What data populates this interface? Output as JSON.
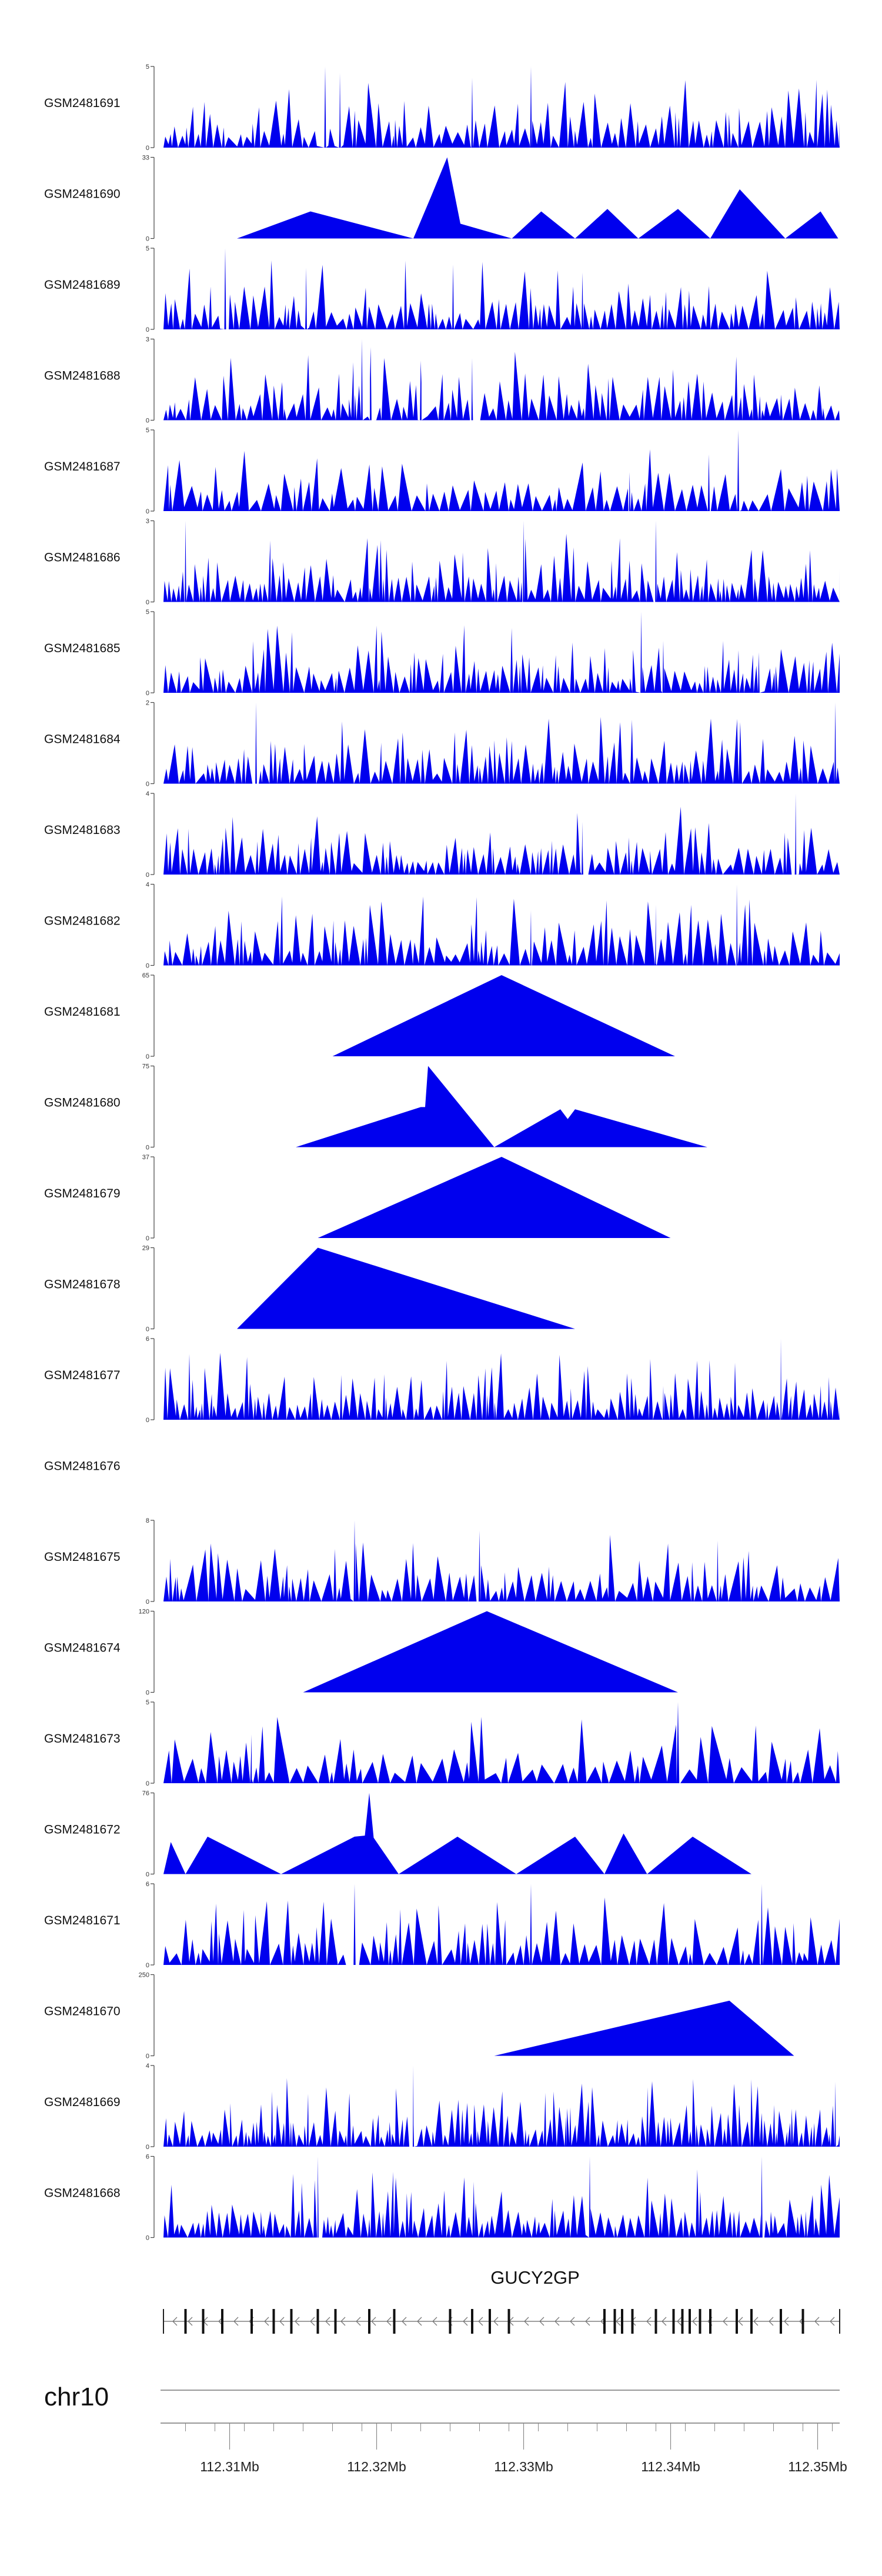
{
  "chart_data": {
    "type": "area",
    "title": "",
    "chromosome": "chr10",
    "gene": "GUCY2GP",
    "xlabel": "",
    "xlim": [
      112.3055,
      112.3515
    ],
    "x_ticks": [
      112.31,
      112.32,
      112.33,
      112.34,
      112.35
    ],
    "x_tick_labels": [
      "112.31Mb",
      "112.32Mb",
      "112.33Mb",
      "112.34Mb",
      "112.35Mb"
    ],
    "colors": {
      "fill": "#0000ee",
      "axis": "#444444",
      "label": "#111111"
    },
    "tracks": [
      {
        "name": "GSM2481691",
        "ymax": 5,
        "ymax_label": "5",
        "min_label": "0",
        "style": "spiky",
        "seed": 11,
        "density": 90,
        "peaks": [
          [
            112.3165,
            5
          ],
          [
            112.3175,
            4.6
          ],
          [
            112.3265,
            4.3
          ],
          [
            112.3305,
            5
          ]
        ]
      },
      {
        "name": "GSM2481690",
        "ymax": 33,
        "ymax_label": "33",
        "min_label": "0",
        "style": "points",
        "points": [
          [
            112.3105,
            0
          ],
          [
            112.3155,
            11
          ],
          [
            112.3225,
            0
          ],
          [
            112.3237,
            17
          ],
          [
            112.3248,
            33
          ],
          [
            112.3257,
            6
          ],
          [
            112.3292,
            0
          ],
          [
            112.3312,
            11
          ],
          [
            112.3335,
            0
          ],
          [
            112.3357,
            12
          ],
          [
            112.3378,
            0
          ],
          [
            112.3405,
            12
          ],
          [
            112.3427,
            0
          ],
          [
            112.3447,
            20
          ],
          [
            112.3461,
            11
          ],
          [
            112.3478,
            0
          ],
          [
            112.3502,
            11
          ],
          [
            112.3514,
            0
          ]
        ]
      },
      {
        "name": "GSM2481689",
        "ymax": 5,
        "ymax_label": "5",
        "min_label": "0",
        "style": "spiky",
        "seed": 23,
        "density": 95,
        "peaks": [
          [
            112.3097,
            5
          ],
          [
            112.3152,
            3.8
          ],
          [
            112.3252,
            4
          ],
          [
            112.334,
            3.5
          ]
        ]
      },
      {
        "name": "GSM2481688",
        "ymax": 3,
        "ymax_label": "3",
        "min_label": "0",
        "style": "spiky",
        "seed": 37,
        "density": 100,
        "peaks": [
          [
            112.319,
            3
          ],
          [
            112.3196,
            2.7
          ],
          [
            112.323,
            2.2
          ],
          [
            112.3265,
            2.3
          ]
        ]
      },
      {
        "name": "GSM2481687",
        "ymax": 5,
        "ymax_label": "5",
        "min_label": "0",
        "style": "spiky",
        "seed": 41,
        "density": 80,
        "peaks": [
          [
            112.3446,
            5
          ],
          [
            112.3426,
            3.5
          ],
          [
            112.3372,
            2.4
          ]
        ]
      },
      {
        "name": "GSM2481686",
        "ymax": 3,
        "ymax_label": "3",
        "min_label": "0",
        "style": "spiky",
        "seed": 53,
        "density": 110,
        "peaks": [
          [
            112.307,
            3
          ],
          [
            112.33,
            3
          ],
          [
            112.339,
            3
          ]
        ]
      },
      {
        "name": "GSM2481685",
        "ymax": 5,
        "ymax_label": "5",
        "min_label": "0",
        "style": "spiky",
        "seed": 67,
        "density": 100,
        "peaks": [
          [
            112.338,
            5
          ],
          [
            112.3395,
            3.2
          ],
          [
            112.346,
            2.5
          ]
        ]
      },
      {
        "name": "GSM2481684",
        "ymax": 2,
        "ymax_label": "2",
        "min_label": "0",
        "style": "spiky",
        "seed": 71,
        "density": 100,
        "peaks": [
          [
            112.3118,
            2
          ],
          [
            112.3512,
            2
          ]
        ]
      },
      {
        "name": "GSM2481683",
        "ymax": 4,
        "ymax_label": "4",
        "min_label": "0",
        "style": "spiky",
        "seed": 83,
        "density": 100,
        "peaks": [
          [
            112.3485,
            4
          ],
          [
            112.334,
            2.6
          ]
        ]
      },
      {
        "name": "GSM2481682",
        "ymax": 4,
        "ymax_label": "4",
        "min_label": "0",
        "style": "spiky",
        "seed": 97,
        "density": 95,
        "peaks": [
          [
            112.3445,
            4
          ],
          [
            112.339,
            3
          ],
          [
            112.3305,
            2.7
          ]
        ]
      },
      {
        "name": "GSM2481681",
        "ymax": 65,
        "ymax_label": "65",
        "min_label": "0",
        "style": "points",
        "points": [
          [
            112.317,
            0
          ],
          [
            112.3285,
            65
          ],
          [
            112.3403,
            0
          ]
        ]
      },
      {
        "name": "GSM2481680",
        "ymax": 75,
        "ymax_label": "75",
        "min_label": "0",
        "style": "points",
        "points": [
          [
            112.3145,
            0
          ],
          [
            112.323,
            37
          ],
          [
            112.3233,
            37
          ],
          [
            112.3235,
            75
          ],
          [
            112.328,
            0
          ],
          [
            112.3325,
            35
          ],
          [
            112.333,
            26
          ],
          [
            112.3335,
            35
          ],
          [
            112.3425,
            0
          ]
        ]
      },
      {
        "name": "GSM2481679",
        "ymax": 37,
        "ymax_label": "37",
        "min_label": "0",
        "style": "points",
        "points": [
          [
            112.316,
            0
          ],
          [
            112.3285,
            37
          ],
          [
            112.34,
            0
          ]
        ]
      },
      {
        "name": "GSM2481678",
        "ymax": 29,
        "ymax_label": "29",
        "min_label": "0",
        "style": "points",
        "points": [
          [
            112.3105,
            0
          ],
          [
            112.316,
            29
          ],
          [
            112.3335,
            0
          ]
        ]
      },
      {
        "name": "GSM2481677",
        "ymax": 6,
        "ymax_label": "6",
        "min_label": "0",
        "style": "spiky",
        "seed": 101,
        "density": 120,
        "peaks": [
          [
            112.3475,
            6
          ],
          [
            112.3395,
            2.5
          ]
        ]
      },
      {
        "name": "GSM2481676",
        "ymax": null,
        "ymax_label": "",
        "min_label": "",
        "style": "empty"
      },
      {
        "name": "GSM2481675",
        "ymax": 8,
        "ymax_label": "8",
        "min_label": "0",
        "style": "spiky",
        "seed": 113,
        "density": 85,
        "peaks": [
          [
            112.3185,
            8
          ],
          [
            112.327,
            7
          ],
          [
            112.3432,
            6
          ]
        ]
      },
      {
        "name": "GSM2481674",
        "ymax": 120,
        "ymax_label": "120",
        "min_label": "0",
        "style": "points",
        "points": [
          [
            112.315,
            0
          ],
          [
            112.3275,
            120
          ],
          [
            112.3405,
            0
          ]
        ]
      },
      {
        "name": "GSM2481673",
        "ymax": 5,
        "ymax_label": "5",
        "min_label": "0",
        "style": "spiky",
        "seed": 127,
        "density": 60,
        "peaks": [
          [
            112.3405,
            5
          ],
          [
            112.3115,
            3
          ]
        ]
      },
      {
        "name": "GSM2481672",
        "ymax": 76,
        "ymax_label": "76",
        "min_label": "0",
        "style": "points",
        "points": [
          [
            112.3055,
            0
          ],
          [
            112.306,
            30
          ],
          [
            112.307,
            0
          ],
          [
            112.3085,
            35
          ],
          [
            112.3135,
            0
          ],
          [
            112.3185,
            35
          ],
          [
            112.3192,
            36
          ],
          [
            112.3195,
            76
          ],
          [
            112.3198,
            34
          ],
          [
            112.3215,
            0
          ],
          [
            112.3255,
            35
          ],
          [
            112.3295,
            0
          ],
          [
            112.3335,
            35
          ],
          [
            112.3355,
            0
          ],
          [
            112.3368,
            38
          ],
          [
            112.3384,
            0
          ],
          [
            112.3415,
            35
          ],
          [
            112.3455,
            0
          ]
        ]
      },
      {
        "name": "GSM2481671",
        "ymax": 6,
        "ymax_label": "6",
        "min_label": "0",
        "style": "spiky",
        "seed": 131,
        "density": 80,
        "peaks": [
          [
            112.3185,
            6
          ],
          [
            112.3305,
            6
          ],
          [
            112.3462,
            6
          ]
        ]
      },
      {
        "name": "GSM2481670",
        "ymax": 250,
        "ymax_label": "250",
        "min_label": "0",
        "style": "points",
        "points": [
          [
            112.328,
            0
          ],
          [
            112.344,
            170
          ],
          [
            112.3484,
            0
          ]
        ]
      },
      {
        "name": "GSM2481669",
        "ymax": 4,
        "ymax_label": "4",
        "min_label": "0",
        "style": "spiky",
        "seed": 149,
        "density": 130,
        "peaks": [
          [
            112.3225,
            4
          ],
          [
            112.3512,
            3.2
          ]
        ]
      },
      {
        "name": "GSM2481668",
        "ymax": 6,
        "ymax_label": "6",
        "min_label": "0",
        "style": "spiky",
        "seed": 163,
        "density": 110,
        "peaks": [
          [
            112.316,
            6
          ],
          [
            112.3345,
            6
          ],
          [
            112.3462,
            6
          ]
        ]
      }
    ],
    "gene_model": {
      "start": 112.3055,
      "end": 112.3515,
      "exons": [
        112.307,
        112.3082,
        112.3095,
        112.3115,
        112.313,
        112.3142,
        112.316,
        112.3172,
        112.3195,
        112.3212,
        112.325,
        112.3265,
        112.3277,
        112.329,
        112.3355,
        112.3362,
        112.3367,
        112.3374,
        112.339,
        112.3402,
        112.3408,
        112.3413,
        112.342,
        112.3427,
        112.3445,
        112.3455,
        112.3475,
        112.349
      ]
    }
  }
}
